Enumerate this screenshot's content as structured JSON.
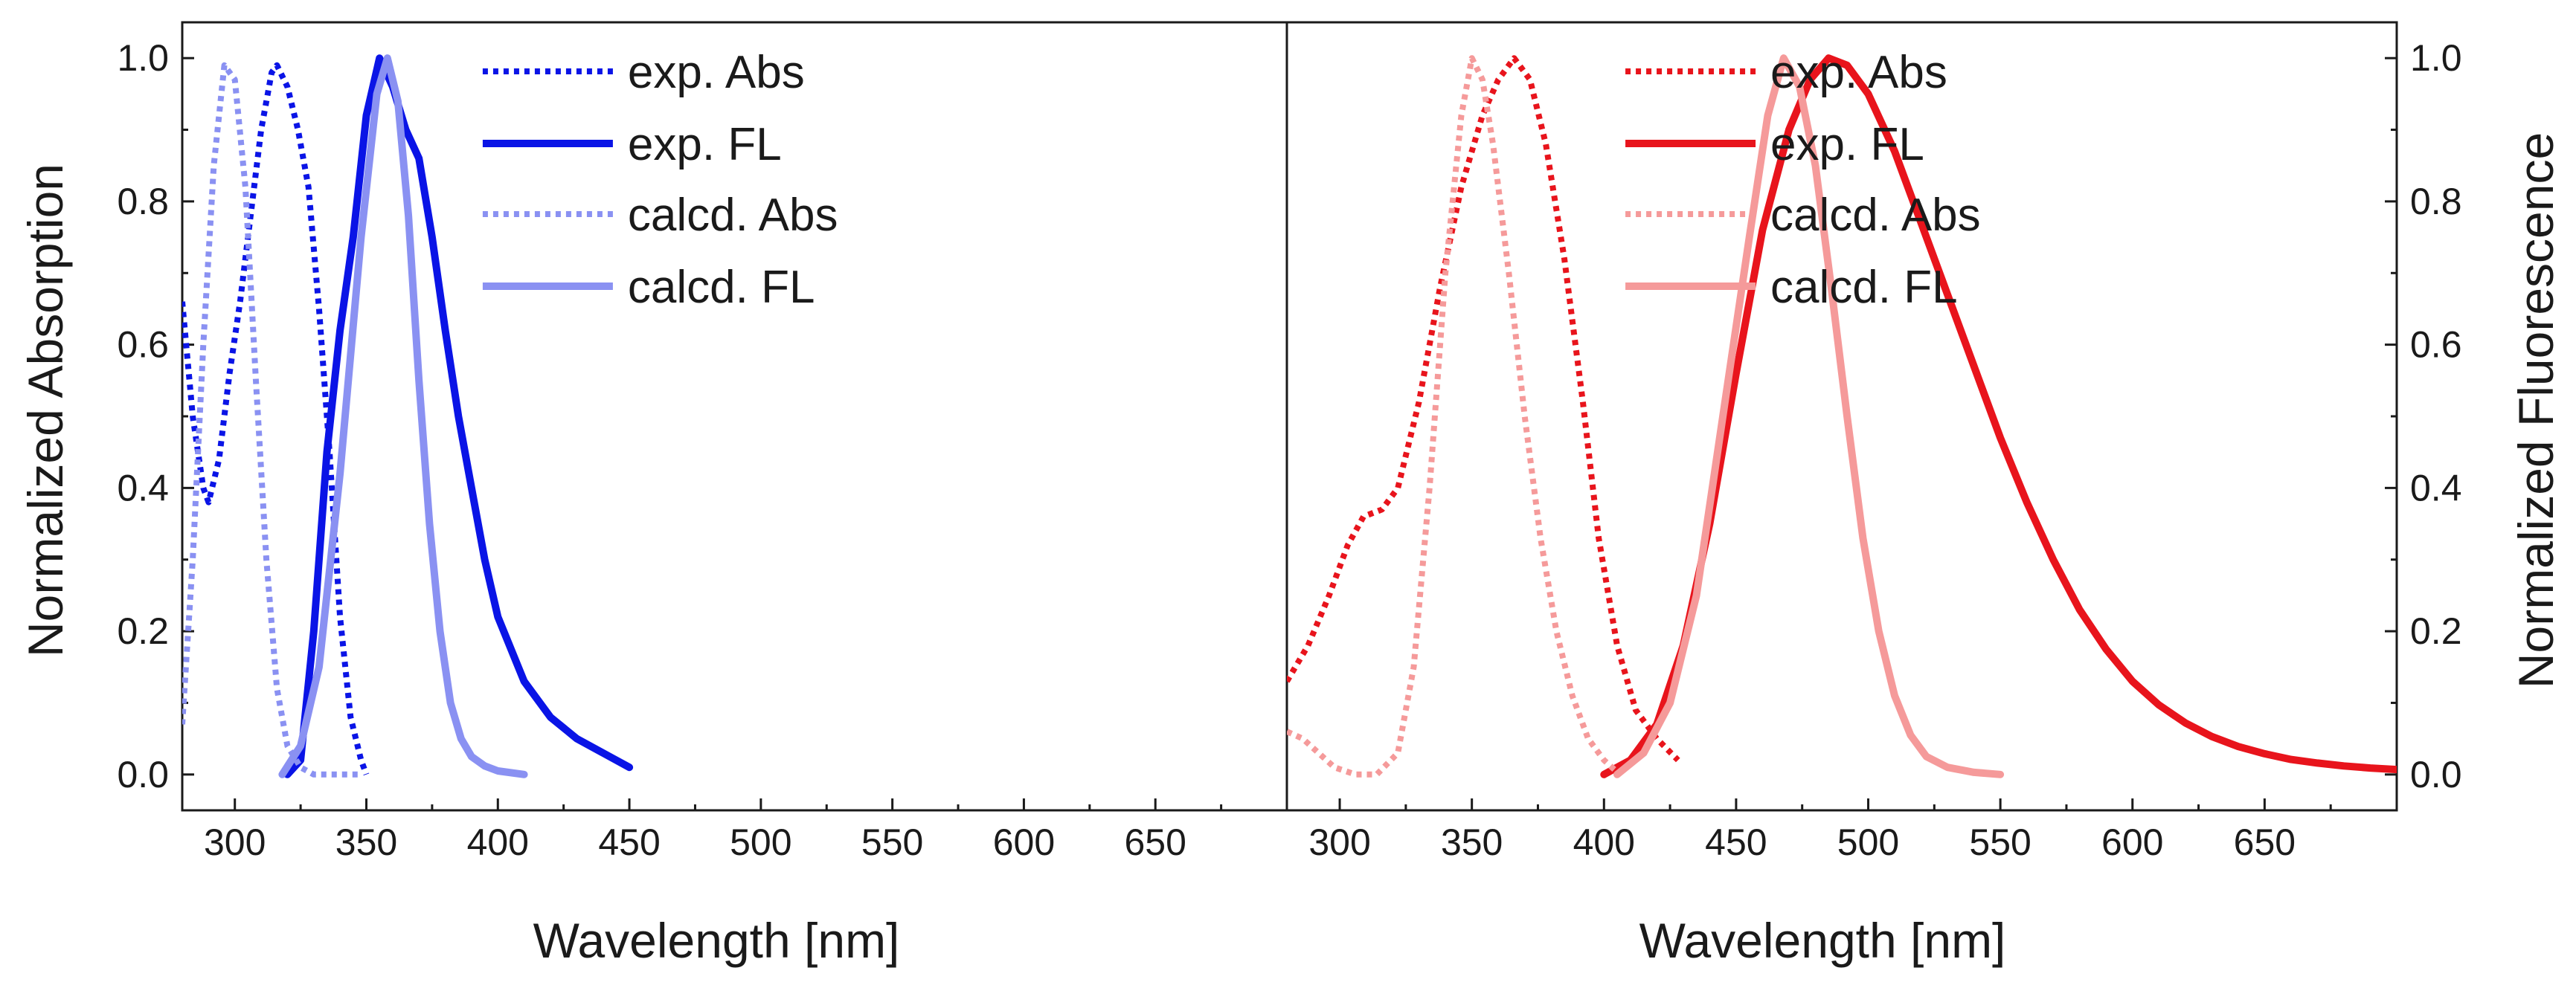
{
  "chart_data": [
    {
      "type": "line",
      "xlabel": "Wavelength [nm]",
      "ylabel": "Normalized Absorption",
      "xlim": [
        280,
        700
      ],
      "ylim": [
        -0.05,
        1.05
      ],
      "x_ticks": [
        "300",
        "350",
        "400",
        "450",
        "500",
        "550",
        "600",
        "650"
      ],
      "y_ticks": [
        "0.0",
        "0.2",
        "0.4",
        "0.6",
        "0.8",
        "1.0"
      ],
      "legend_position": "top-right",
      "series": [
        {
          "name": "exp. Abs",
          "color": "#0a14e6",
          "style": "dotted",
          "points": [
            [
              280,
              0.66
            ],
            [
              284,
              0.5
            ],
            [
              288,
              0.4
            ],
            [
              290,
              0.38
            ],
            [
              294,
              0.44
            ],
            [
              298,
              0.56
            ],
            [
              302,
              0.66
            ],
            [
              306,
              0.78
            ],
            [
              310,
              0.9
            ],
            [
              314,
              0.98
            ],
            [
              316,
              0.99
            ],
            [
              320,
              0.96
            ],
            [
              324,
              0.9
            ],
            [
              328,
              0.82
            ],
            [
              332,
              0.65
            ],
            [
              336,
              0.45
            ],
            [
              340,
              0.22
            ],
            [
              344,
              0.08
            ],
            [
              348,
              0.02
            ],
            [
              350,
              0.0
            ]
          ]
        },
        {
          "name": "exp. FL",
          "color": "#0a14e6",
          "style": "solid",
          "points": [
            [
              320,
              0.0
            ],
            [
              325,
              0.02
            ],
            [
              330,
              0.2
            ],
            [
              335,
              0.45
            ],
            [
              340,
              0.62
            ],
            [
              345,
              0.75
            ],
            [
              350,
              0.92
            ],
            [
              355,
              1.0
            ],
            [
              360,
              0.96
            ],
            [
              365,
              0.9
            ],
            [
              370,
              0.86
            ],
            [
              375,
              0.75
            ],
            [
              380,
              0.62
            ],
            [
              385,
              0.5
            ],
            [
              390,
              0.4
            ],
            [
              395,
              0.3
            ],
            [
              400,
              0.22
            ],
            [
              410,
              0.13
            ],
            [
              420,
              0.08
            ],
            [
              430,
              0.05
            ],
            [
              440,
              0.03
            ],
            [
              450,
              0.01
            ]
          ]
        },
        {
          "name": "calcd. Abs",
          "color": "#8a91f2",
          "style": "dotted",
          "points": [
            [
              280,
              0.07
            ],
            [
              284,
              0.3
            ],
            [
              288,
              0.6
            ],
            [
              292,
              0.85
            ],
            [
              296,
              0.99
            ],
            [
              300,
              0.97
            ],
            [
              304,
              0.82
            ],
            [
              308,
              0.55
            ],
            [
              312,
              0.3
            ],
            [
              316,
              0.12
            ],
            [
              320,
              0.04
            ],
            [
              325,
              0.01
            ],
            [
              330,
              0.0
            ],
            [
              348,
              0.0
            ]
          ]
        },
        {
          "name": "calcd. FL",
          "color": "#8a91f2",
          "style": "solid",
          "points": [
            [
              318,
              0.0
            ],
            [
              325,
              0.04
            ],
            [
              332,
              0.15
            ],
            [
              340,
              0.42
            ],
            [
              348,
              0.75
            ],
            [
              354,
              0.95
            ],
            [
              358,
              1.0
            ],
            [
              362,
              0.94
            ],
            [
              366,
              0.78
            ],
            [
              370,
              0.55
            ],
            [
              374,
              0.35
            ],
            [
              378,
              0.2
            ],
            [
              382,
              0.1
            ],
            [
              386,
              0.05
            ],
            [
              390,
              0.025
            ],
            [
              395,
              0.012
            ],
            [
              400,
              0.005
            ],
            [
              410,
              0.0
            ]
          ]
        }
      ]
    },
    {
      "type": "line",
      "xlabel": "Wavelength [nm]",
      "ylabel": "Normalized Fluorescence",
      "xlim": [
        280,
        700
      ],
      "ylim": [
        -0.05,
        1.05
      ],
      "x_ticks": [
        "300",
        "350",
        "400",
        "450",
        "500",
        "550",
        "600",
        "650"
      ],
      "y_ticks": [
        "0.0",
        "0.2",
        "0.4",
        "0.6",
        "0.8",
        "1.0"
      ],
      "legend_position": "top-right",
      "series": [
        {
          "name": "exp. Abs",
          "color": "#e8141c",
          "style": "dotted",
          "points": [
            [
              280,
              0.13
            ],
            [
              288,
              0.18
            ],
            [
              296,
              0.25
            ],
            [
              303,
              0.32
            ],
            [
              309,
              0.36
            ],
            [
              316,
              0.37
            ],
            [
              322,
              0.4
            ],
            [
              330,
              0.52
            ],
            [
              338,
              0.68
            ],
            [
              346,
              0.82
            ],
            [
              354,
              0.92
            ],
            [
              360,
              0.97
            ],
            [
              366,
              1.0
            ],
            [
              372,
              0.97
            ],
            [
              378,
              0.88
            ],
            [
              385,
              0.72
            ],
            [
              392,
              0.52
            ],
            [
              398,
              0.33
            ],
            [
              405,
              0.18
            ],
            [
              412,
              0.09
            ],
            [
              420,
              0.05
            ],
            [
              428,
              0.02
            ]
          ]
        },
        {
          "name": "exp. FL",
          "color": "#e8141c",
          "style": "solid",
          "points": [
            [
              400,
              0.0
            ],
            [
              410,
              0.02
            ],
            [
              420,
              0.07
            ],
            [
              430,
              0.18
            ],
            [
              440,
              0.35
            ],
            [
              450,
              0.56
            ],
            [
              460,
              0.76
            ],
            [
              470,
              0.9
            ],
            [
              478,
              0.97
            ],
            [
              485,
              1.0
            ],
            [
              492,
              0.99
            ],
            [
              500,
              0.95
            ],
            [
              510,
              0.87
            ],
            [
              520,
              0.77
            ],
            [
              530,
              0.67
            ],
            [
              540,
              0.57
            ],
            [
              550,
              0.47
            ],
            [
              560,
              0.38
            ],
            [
              570,
              0.3
            ],
            [
              580,
              0.23
            ],
            [
              590,
              0.175
            ],
            [
              600,
              0.13
            ],
            [
              610,
              0.097
            ],
            [
              620,
              0.072
            ],
            [
              630,
              0.053
            ],
            [
              640,
              0.039
            ],
            [
              650,
              0.029
            ],
            [
              660,
              0.021
            ],
            [
              670,
              0.016
            ],
            [
              680,
              0.012
            ],
            [
              690,
              0.009
            ],
            [
              700,
              0.007
            ]
          ]
        },
        {
          "name": "calcd. Abs",
          "color": "#f59a9a",
          "style": "dotted",
          "points": [
            [
              280,
              0.06
            ],
            [
              286,
              0.05
            ],
            [
              292,
              0.03
            ],
            [
              298,
              0.01
            ],
            [
              306,
              0.0
            ],
            [
              314,
              0.0
            ],
            [
              322,
              0.03
            ],
            [
              328,
              0.15
            ],
            [
              334,
              0.4
            ],
            [
              340,
              0.7
            ],
            [
              346,
              0.92
            ],
            [
              350,
              1.0
            ],
            [
              354,
              0.97
            ],
            [
              358,
              0.88
            ],
            [
              364,
              0.7
            ],
            [
              370,
              0.5
            ],
            [
              376,
              0.33
            ],
            [
              382,
              0.2
            ],
            [
              388,
              0.11
            ],
            [
              394,
              0.05
            ],
            [
              400,
              0.02
            ],
            [
              406,
              0.0
            ]
          ]
        },
        {
          "name": "calcd. FL",
          "color": "#f59a9a",
          "style": "solid",
          "points": [
            [
              405,
              0.0
            ],
            [
              415,
              0.03
            ],
            [
              425,
              0.1
            ],
            [
              435,
              0.25
            ],
            [
              445,
              0.5
            ],
            [
              455,
              0.75
            ],
            [
              462,
              0.92
            ],
            [
              468,
              1.0
            ],
            [
              474,
              0.96
            ],
            [
              480,
              0.85
            ],
            [
              486,
              0.68
            ],
            [
              492,
              0.5
            ],
            [
              498,
              0.33
            ],
            [
              504,
              0.2
            ],
            [
              510,
              0.11
            ],
            [
              516,
              0.055
            ],
            [
              522,
              0.025
            ],
            [
              530,
              0.01
            ],
            [
              540,
              0.003
            ],
            [
              550,
              0.0
            ]
          ]
        }
      ]
    }
  ]
}
